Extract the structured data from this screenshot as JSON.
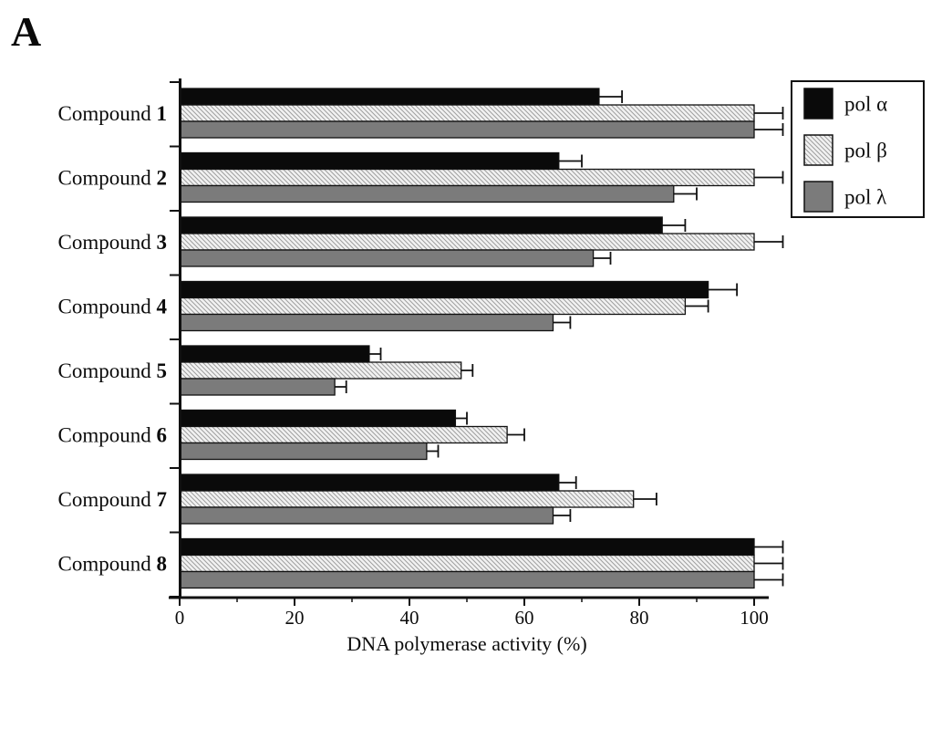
{
  "panel_label": "A",
  "colors": {
    "pol_alpha": "#0a0a0a",
    "pol_beta_bg": "#f2f2f2",
    "pol_beta_hatch": "#9e9e9e",
    "pol_lambda": "#7b7b7b",
    "axis": "#111111",
    "background": "#ffffff"
  },
  "chart_data": {
    "type": "bar",
    "orientation": "horizontal",
    "title": "",
    "xlabel": "DNA polymerase activity (%)",
    "ylabel": "",
    "xlim": [
      0,
      105
    ],
    "x_major_ticks": [
      0,
      20,
      40,
      60,
      80,
      100
    ],
    "x_minor_ticks": [
      10,
      30,
      50,
      70,
      90
    ],
    "grid": false,
    "legend_position": "top-right",
    "categories": [
      "Compound 1",
      "Compound 2",
      "Compound 3",
      "Compound 4",
      "Compound 5",
      "Compound 6",
      "Compound 7",
      "Compound 8"
    ],
    "series": [
      {
        "name": "pol α",
        "swatch": "black",
        "values": [
          73,
          66,
          84,
          92,
          33,
          48,
          66,
          100
        ],
        "errors": [
          4,
          4,
          4,
          5,
          2,
          2,
          3,
          5
        ]
      },
      {
        "name": "pol β",
        "swatch": "hatch",
        "values": [
          100,
          100,
          100,
          88,
          49,
          57,
          79,
          100
        ],
        "errors": [
          5,
          5,
          5,
          4,
          2,
          3,
          4,
          5
        ]
      },
      {
        "name": "pol λ",
        "swatch": "gray",
        "values": [
          100,
          86,
          72,
          65,
          27,
          43,
          65,
          100
        ],
        "errors": [
          5,
          4,
          3,
          3,
          2,
          2,
          3,
          5
        ]
      }
    ]
  }
}
